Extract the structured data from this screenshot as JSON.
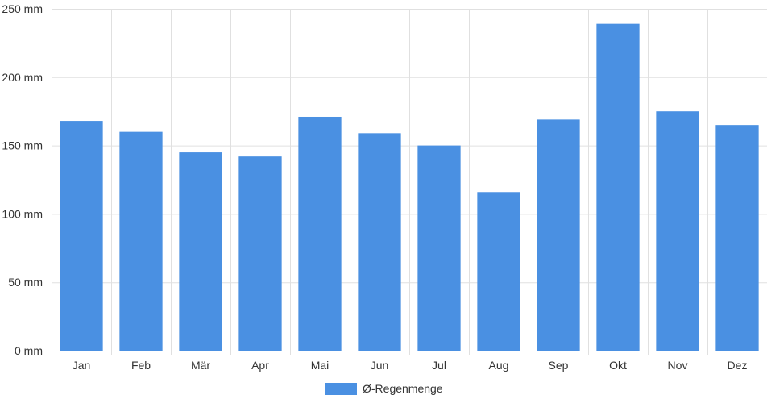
{
  "chart_data": {
    "type": "bar",
    "categories": [
      "Jan",
      "Feb",
      "Mär",
      "Apr",
      "Mai",
      "Jun",
      "Jul",
      "Aug",
      "Sep",
      "Okt",
      "Nov",
      "Dez"
    ],
    "series": [
      {
        "name": "Ø-Regenmenge",
        "color": "#4a90e2",
        "values": [
          168,
          160,
          145,
          142,
          171,
          159,
          150,
          116,
          169,
          239,
          175,
          165
        ]
      }
    ],
    "ylim": [
      0,
      250
    ],
    "yticks": [
      0,
      50,
      100,
      150,
      200,
      250
    ],
    "y_unit": "mm",
    "ytick_labels": [
      "0 mm",
      "50 mm",
      "100 mm",
      "150 mm",
      "200 mm",
      "250 mm"
    ],
    "grid": true,
    "legend_position": "bottom-center"
  }
}
